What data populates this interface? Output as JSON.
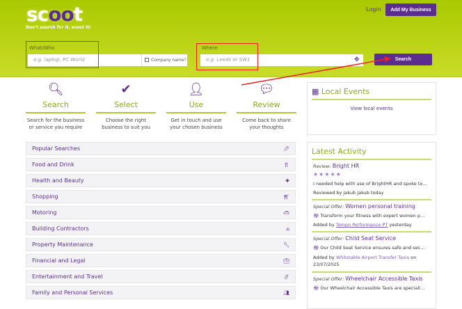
{
  "header": {
    "logo": "scoot",
    "tagline": "Don't search for it, scoot it!",
    "login": "Login",
    "add_business": "Add My Business"
  },
  "search": {
    "what_label": "What/Who",
    "what_placeholder": "e.g. laptop, PC World",
    "company_name": "Company name?",
    "where_label": "Where",
    "where_placeholder": "e.g. Leeds or SW1",
    "button": "Search"
  },
  "steps": [
    {
      "icon": "search-icon",
      "title": "Search",
      "desc": "Search for the business or service you require"
    },
    {
      "icon": "check-icon",
      "title": "Select",
      "desc": "Choose the right business to suit you"
    },
    {
      "icon": "user-icon",
      "title": "Use",
      "desc": "Get in touch and use your chosen business"
    },
    {
      "icon": "comments-icon",
      "title": "Review",
      "desc": "Come back to share your thoughts"
    }
  ],
  "categories": [
    {
      "label": "Popular Searches",
      "icon": "pin-icon"
    },
    {
      "label": "Food and Drink",
      "icon": "cutlery-icon"
    },
    {
      "label": "Health and Beauty",
      "icon": "medkit-icon"
    },
    {
      "label": "Shopping",
      "icon": "cart-icon"
    },
    {
      "label": "Motoring",
      "icon": "car-icon"
    },
    {
      "label": "Building Contractors",
      "icon": "home-icon"
    },
    {
      "label": "Property Maintenance",
      "icon": "wrench-icon"
    },
    {
      "label": "Financial and Legal",
      "icon": "briefcase-icon"
    },
    {
      "label": "Entertainment and Travel",
      "icon": "suitcase-icon"
    },
    {
      "label": "Family and Personal Services",
      "icon": "users-icon"
    }
  ],
  "events": {
    "title": "Local Events",
    "link": "View local events"
  },
  "activity": {
    "title": "Latest Activity",
    "review": {
      "kind": "Review:",
      "title": "Bright HR",
      "rating": 5,
      "text": "I needed help with use of BrightHR and spoke to Na...",
      "by": "Reviewed by Jakub Jakub today"
    },
    "offers": [
      {
        "kind": "Special Offer:",
        "title": "Women personal training",
        "text": "Transform your fitness with expert women pers...",
        "added": "Added by",
        "business": "Tempo Performance PT",
        "when": "yesterday"
      },
      {
        "kind": "Special Offer:",
        "title": "Child Seat Service",
        "text": "Our Child Seat Service ensures safe and secure ...",
        "added": "Added by",
        "business": "Whitstable Airport Transfer Taxis",
        "when": "on 23/07/2025"
      },
      {
        "kind": "Special Offer:",
        "title": "Wheelchair Accessible Taxis",
        "text": "Our Wheelchair Accessible Taxis are specially e..."
      }
    ]
  },
  "colors": {
    "brand_purple": "#5b2d8e",
    "brand_green": "#a9c900",
    "annotation_red": "#f02020"
  }
}
